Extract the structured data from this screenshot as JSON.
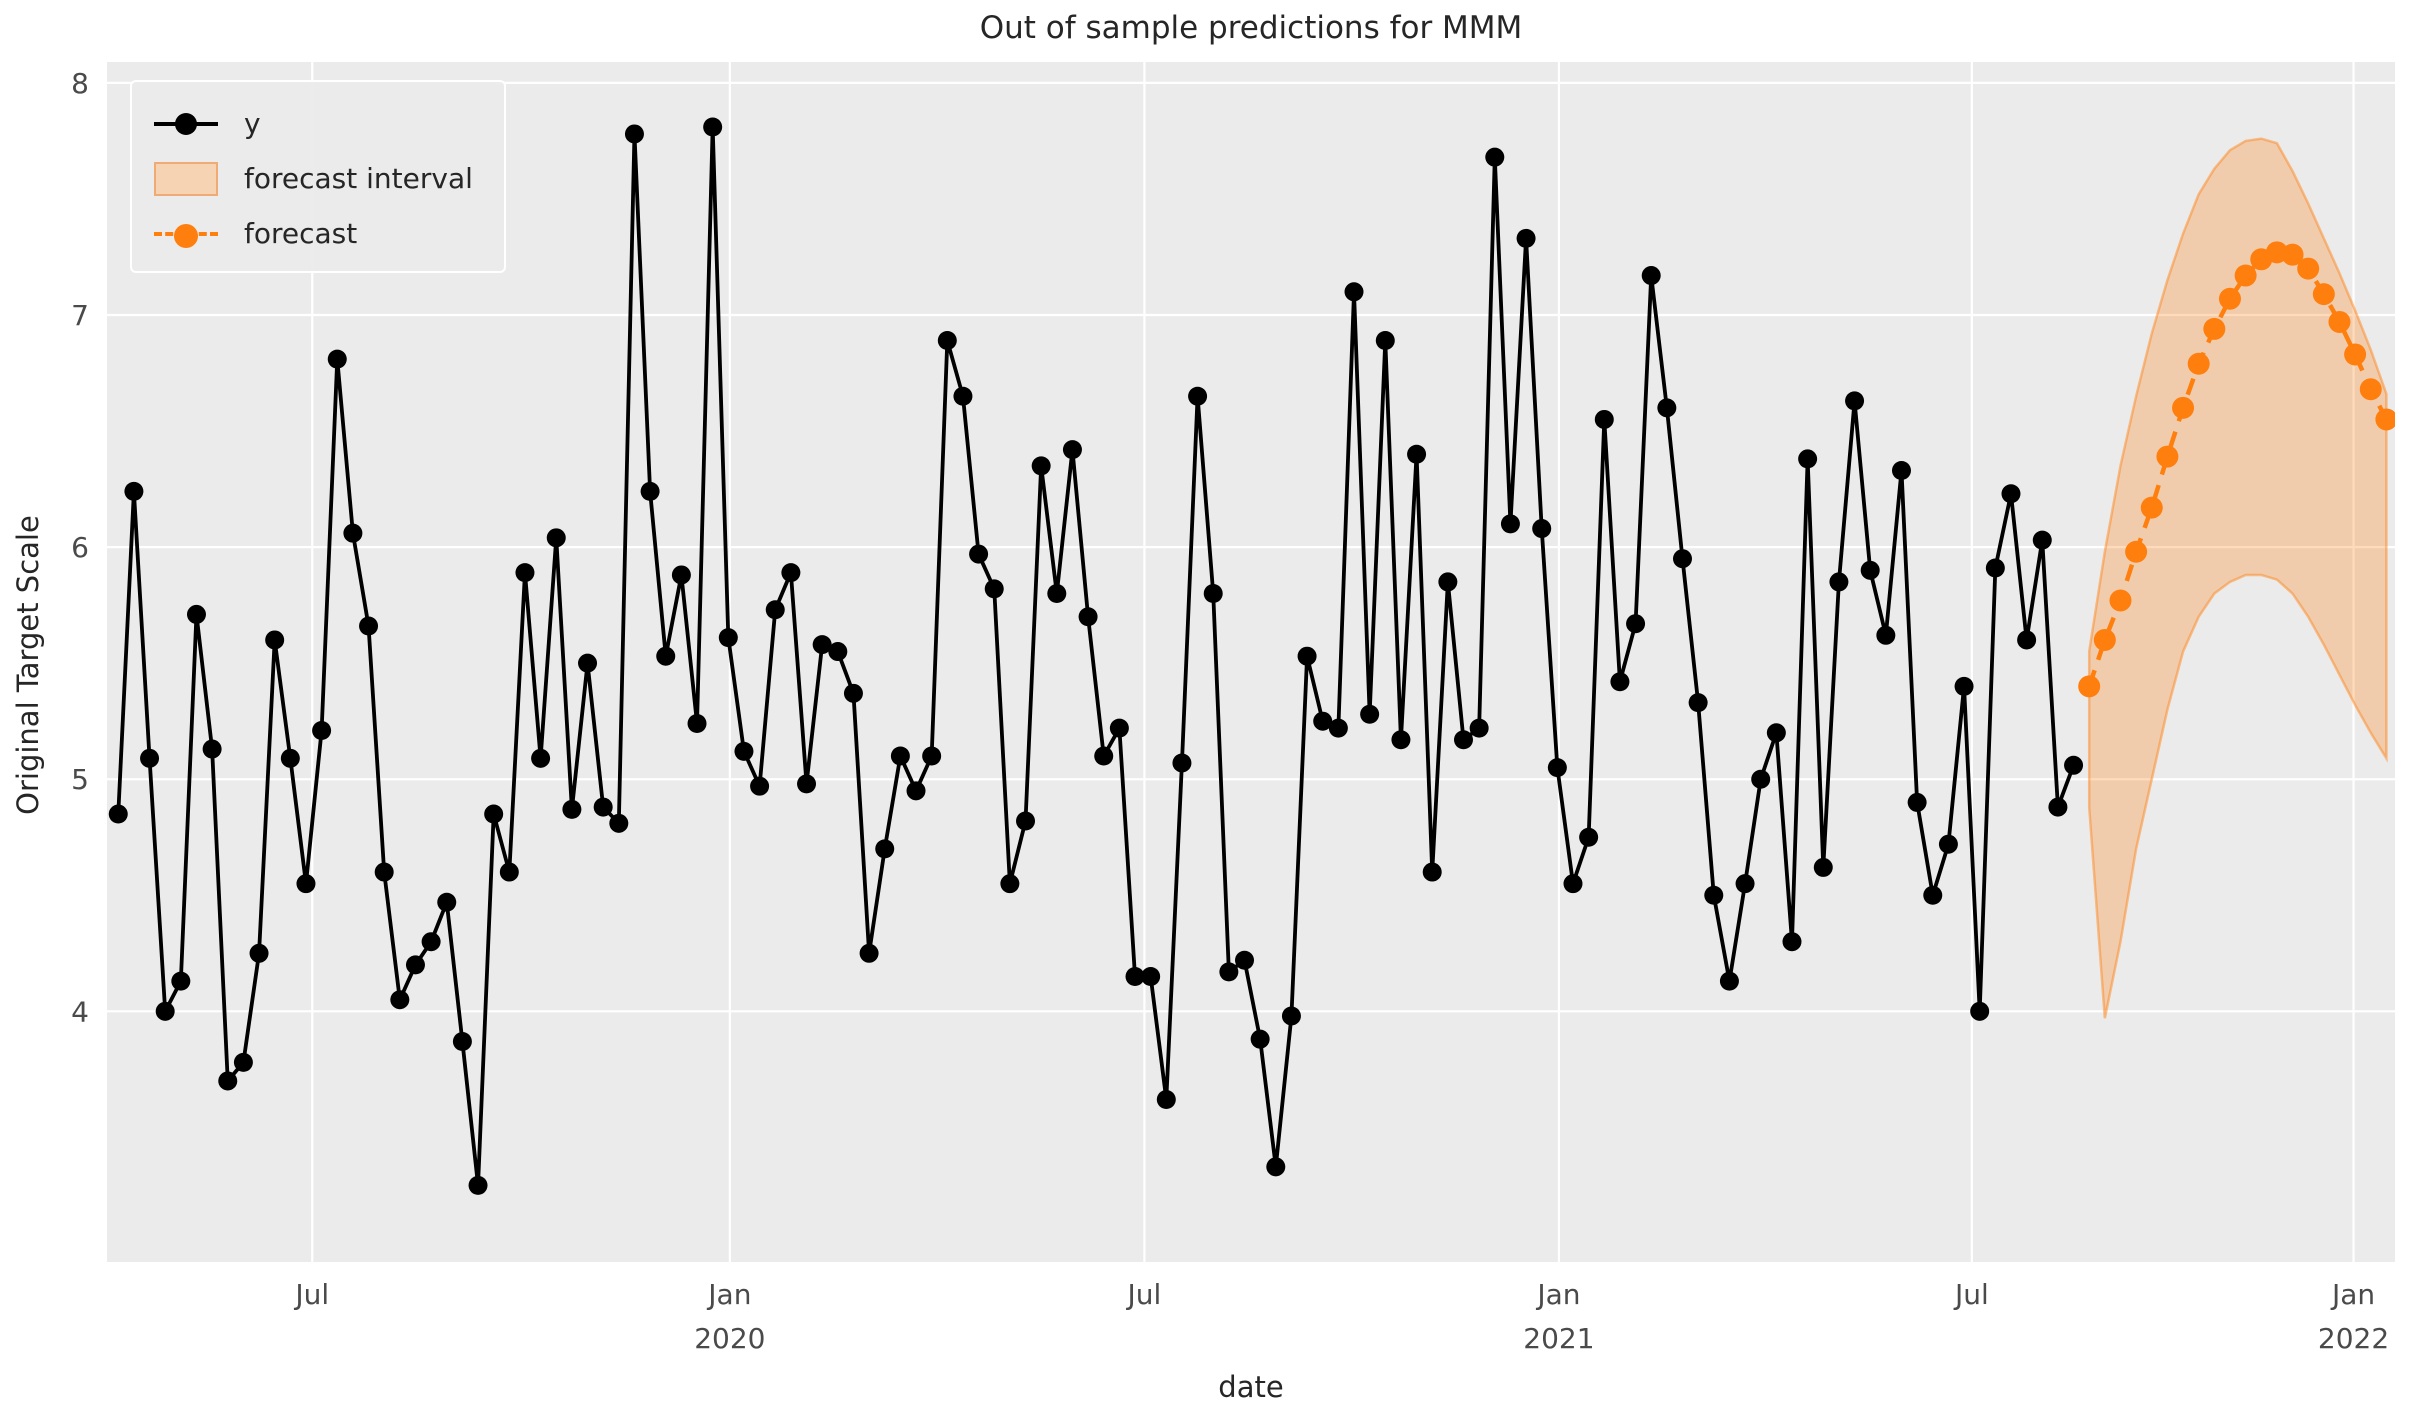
{
  "figure": {
    "title": "Out of sample predictions for MMM",
    "xlabel": "date",
    "ylabel": "Original Target Scale"
  },
  "legend": [
    {
      "label": "y",
      "swatch": "black-line-marker-icon"
    },
    {
      "label": "forecast interval",
      "swatch": "orange-band-patch-icon"
    },
    {
      "label": "forecast",
      "swatch": "orange-dashed-marker-icon"
    }
  ],
  "colors": {
    "series_y": "#000000",
    "forecast": "#ff7f0e",
    "forecast_band_fill": "rgba(255,127,14,0.28)",
    "forecast_band_edge": "rgba(255,127,14,0.45)",
    "plot_background": "#ebebeb",
    "gridline": "#ffffff",
    "text": "#262626",
    "tick_text": "#4a4a4a"
  },
  "chart_data": {
    "type": "line",
    "title": "Out of sample predictions for MMM",
    "xlabel": "date",
    "ylabel": "Original Target Scale",
    "x_unit": "weeks",
    "x_start_date": "2019-04-14",
    "x_freq": "weekly",
    "grid": true,
    "legend_position": "upper left",
    "xlim_weeks": [
      -0.72,
      145.55
    ],
    "ylim": [
      2.92,
      8.09
    ],
    "y_ticks": [
      {
        "value": 8,
        "label": "8"
      },
      {
        "value": 7,
        "label": "7"
      },
      {
        "value": 6,
        "label": "6"
      },
      {
        "value": 5,
        "label": "5"
      },
      {
        "value": 4,
        "label": "4"
      }
    ],
    "x_ticks": [
      {
        "pos_weeks": 12.4,
        "line1": "Jul",
        "line2": ""
      },
      {
        "pos_weeks": 39.1,
        "line1": "Jan",
        "line2": "2020"
      },
      {
        "pos_weeks": 65.6,
        "line1": "Jul",
        "line2": ""
      },
      {
        "pos_weeks": 92.1,
        "line1": "Jan",
        "line2": "2021"
      },
      {
        "pos_weeks": 118.5,
        "line1": "Jul",
        "line2": ""
      },
      {
        "pos_weeks": 142.9,
        "line1": "Jan",
        "line2": "2022"
      }
    ],
    "series": [
      {
        "name": "y",
        "style": "solid-line-circle-markers",
        "color": "#000000",
        "start_week": 0,
        "values": [
          4.85,
          6.24,
          5.09,
          4.0,
          4.13,
          5.71,
          5.13,
          3.7,
          3.78,
          4.25,
          5.6,
          5.09,
          4.55,
          5.21,
          6.81,
          6.06,
          5.66,
          4.6,
          4.05,
          4.2,
          4.3,
          4.47,
          3.87,
          3.25,
          4.85,
          4.6,
          5.89,
          5.09,
          6.04,
          4.87,
          5.5,
          4.88,
          4.81,
          7.78,
          6.24,
          5.53,
          5.88,
          5.24,
          7.81,
          5.61,
          5.12,
          4.97,
          5.73,
          5.89,
          4.98,
          5.58,
          5.55,
          5.37,
          4.25,
          4.7,
          5.1,
          4.95,
          5.1,
          6.89,
          6.65,
          5.97,
          5.82,
          4.55,
          4.82,
          6.35,
          5.8,
          6.42,
          5.7,
          5.1,
          5.22,
          4.15,
          4.15,
          3.62,
          5.07,
          6.65,
          5.8,
          4.17,
          4.22,
          3.88,
          3.33,
          3.98,
          5.53,
          5.25,
          5.22,
          7.1,
          5.28,
          6.89,
          5.17,
          6.4,
          4.6,
          5.85,
          5.17,
          5.22,
          7.68,
          6.1,
          7.33,
          6.08,
          5.05,
          4.55,
          4.75,
          6.55,
          5.42,
          5.67,
          7.17,
          6.6,
          5.95,
          5.33,
          4.5,
          4.13,
          4.55,
          5.0,
          5.2,
          4.3,
          6.38,
          4.62,
          5.85,
          6.63,
          5.9,
          5.62,
          6.33,
          4.9,
          4.5,
          4.72,
          5.4,
          4.0,
          5.91,
          6.23,
          5.6,
          6.03,
          4.88,
          5.06
        ]
      },
      {
        "name": "forecast",
        "style": "dashed-line-circle-markers",
        "color": "#ff7f0e",
        "start_week": 126,
        "values": [
          5.4,
          5.6,
          5.77,
          5.98,
          6.17,
          6.39,
          6.6,
          6.79,
          6.94,
          7.07,
          7.17,
          7.24,
          7.27,
          7.26,
          7.2,
          7.09,
          6.97,
          6.83,
          6.68,
          6.55
        ]
      }
    ],
    "interval": {
      "name": "forecast interval",
      "start_week": 126,
      "lower": [
        4.88,
        3.97,
        4.3,
        4.7,
        5.0,
        5.3,
        5.55,
        5.7,
        5.8,
        5.85,
        5.88,
        5.88,
        5.86,
        5.8,
        5.7,
        5.58,
        5.45,
        5.32,
        5.2,
        5.09
      ],
      "upper": [
        5.55,
        5.98,
        6.35,
        6.65,
        6.92,
        7.15,
        7.35,
        7.52,
        7.63,
        7.71,
        7.75,
        7.76,
        7.74,
        7.62,
        7.48,
        7.33,
        7.18,
        7.02,
        6.85,
        6.66
      ]
    }
  }
}
